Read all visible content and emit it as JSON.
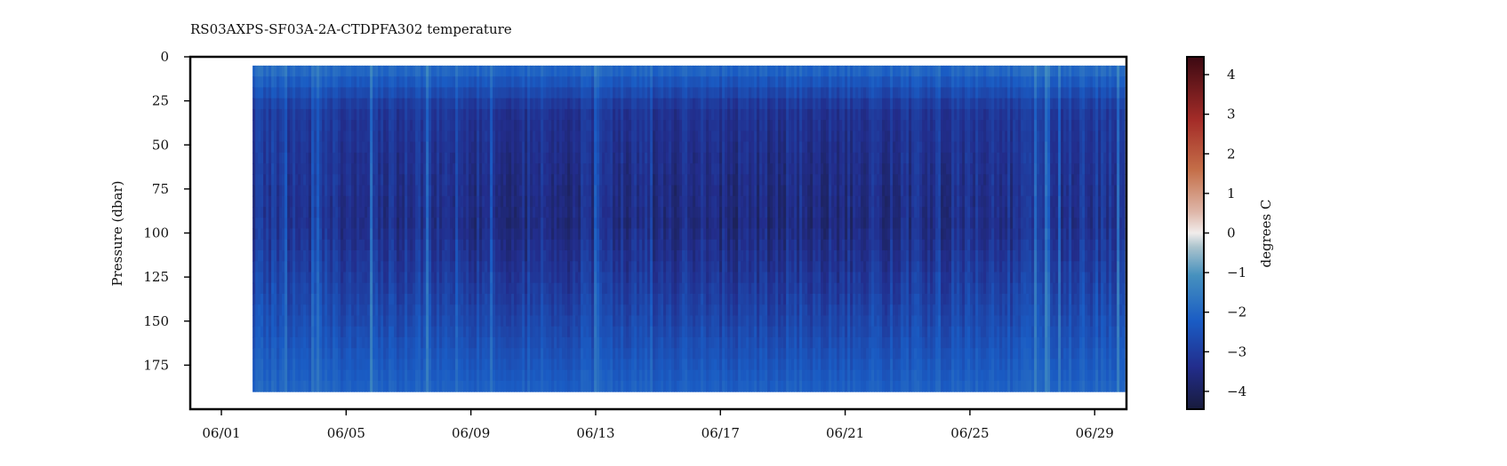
{
  "chart_data": {
    "type": "heatmap",
    "title": "RS03AXPS-SF03A-2A-CTDPFA302 temperature",
    "xlabel": "",
    "ylabel": "Pressure (dbar)",
    "x": {
      "ticks": [
        {
          "label": "06/01",
          "day": 1
        },
        {
          "label": "06/05",
          "day": 5
        },
        {
          "label": "06/09",
          "day": 9
        },
        {
          "label": "06/13",
          "day": 13
        },
        {
          "label": "06/17",
          "day": 17
        },
        {
          "label": "06/21",
          "day": 21
        },
        {
          "label": "06/25",
          "day": 25
        },
        {
          "label": "06/29",
          "day": 29
        }
      ],
      "range": [
        "05/30",
        "06/30"
      ],
      "data_extent": [
        "06/02",
        "06/30"
      ]
    },
    "y": {
      "ticks": [
        0,
        25,
        50,
        75,
        100,
        125,
        150,
        175
      ],
      "range": [
        200,
        0
      ],
      "inverted": true,
      "data_extent": [
        5,
        190
      ]
    },
    "colorbar": {
      "label": "degrees C",
      "ticks": [
        4,
        3,
        2,
        1,
        0,
        -1,
        -2,
        -3,
        -4
      ],
      "tick_labels": [
        "4",
        "3",
        "2",
        "1",
        "0",
        "−1",
        "−2",
        "−3",
        "−4"
      ],
      "range": [
        -4.45,
        4.45
      ],
      "colormap": "balance"
    },
    "field_description": {
      "surface_temperature_approx": -1.5,
      "mid_depth_temperature_approx": -3.0,
      "deep_temperature_approx": -2.0,
      "coldest_core_depth_dbar": 95
    }
  }
}
